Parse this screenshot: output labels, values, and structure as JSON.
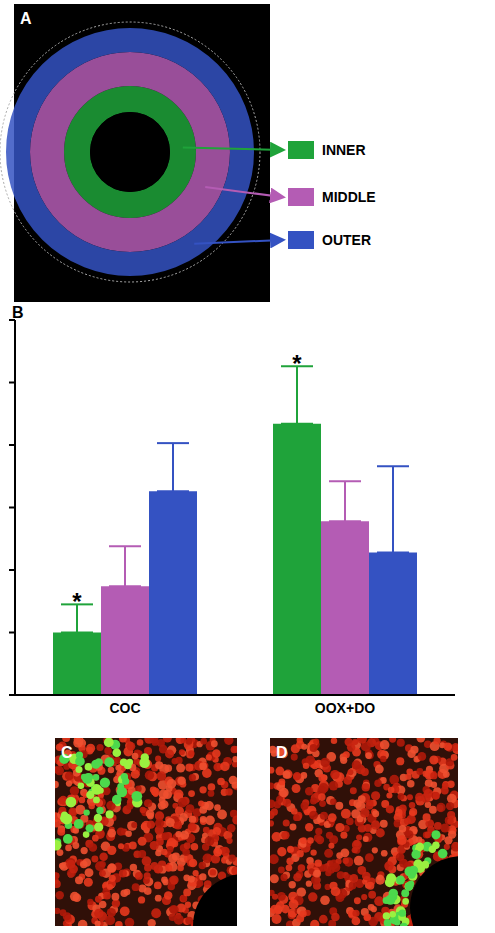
{
  "panel_labels": [
    "A",
    "B",
    "C",
    "D"
  ],
  "chart_data": {
    "type": "bar",
    "categories": [
      "COC",
      "OOX+DO"
    ],
    "series": [
      {
        "name": "INNER",
        "color": "#1fa33a",
        "values": [
          1.0,
          4.34
        ],
        "errors": [
          0.45,
          0.92
        ]
      },
      {
        "name": "MIDDLE",
        "color": "#b45cb4",
        "values": [
          1.74,
          2.78
        ],
        "errors": [
          0.64,
          0.64
        ]
      },
      {
        "name": "OUTER",
        "color": "#3452c2",
        "values": [
          3.26,
          2.28
        ],
        "errors": [
          0.77,
          1.38
        ]
      }
    ],
    "ylim": [
      0,
      6
    ],
    "yticks": [
      0,
      1,
      2,
      3,
      4,
      5,
      6
    ],
    "tick_labels": "x",
    "annotations": [
      {
        "text": "*",
        "category": "COC",
        "series": "INNER"
      },
      {
        "text": "*",
        "category": "OOX+DO",
        "series": "INNER"
      }
    ]
  }
}
